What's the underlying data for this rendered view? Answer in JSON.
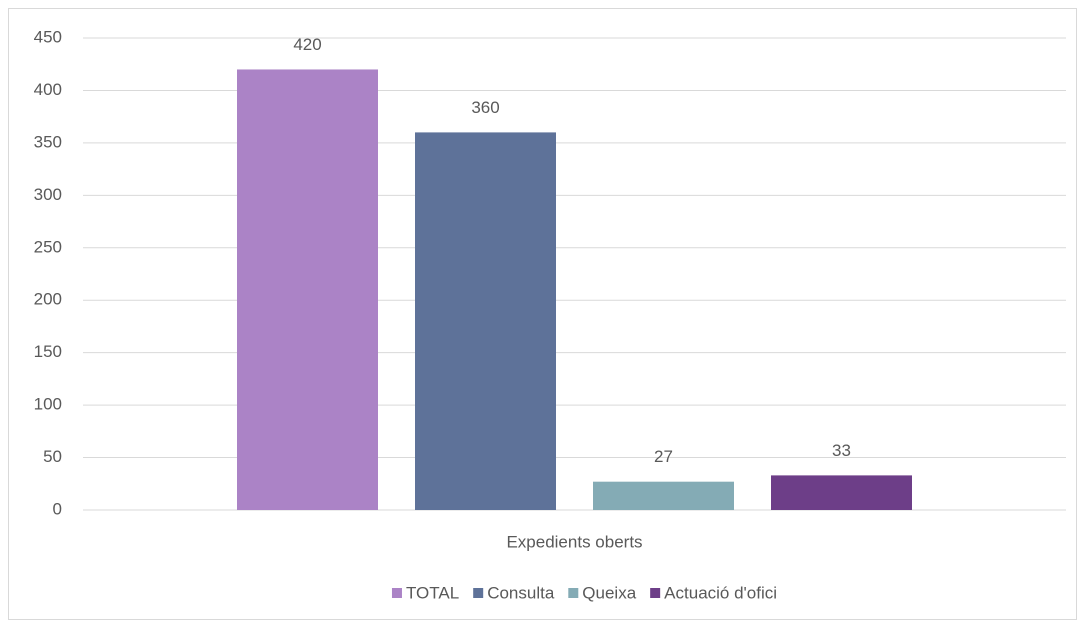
{
  "chart_data": {
    "type": "bar",
    "categories": [
      "Expedients oberts"
    ],
    "series": [
      {
        "name": "TOTAL",
        "color": "#ab83c6",
        "values": [
          420
        ]
      },
      {
        "name": "Consulta",
        "color": "#5e7299",
        "values": [
          360
        ]
      },
      {
        "name": "Queixa",
        "color": "#84abb5",
        "values": [
          27
        ]
      },
      {
        "name": "Actuació d'ofici",
        "color": "#6d3e88",
        "values": [
          33
        ]
      }
    ],
    "ylim": [
      0,
      450
    ],
    "yticks": [
      0,
      50,
      100,
      150,
      200,
      250,
      300,
      350,
      400,
      450
    ],
    "grid": true,
    "legend": "bottom"
  }
}
